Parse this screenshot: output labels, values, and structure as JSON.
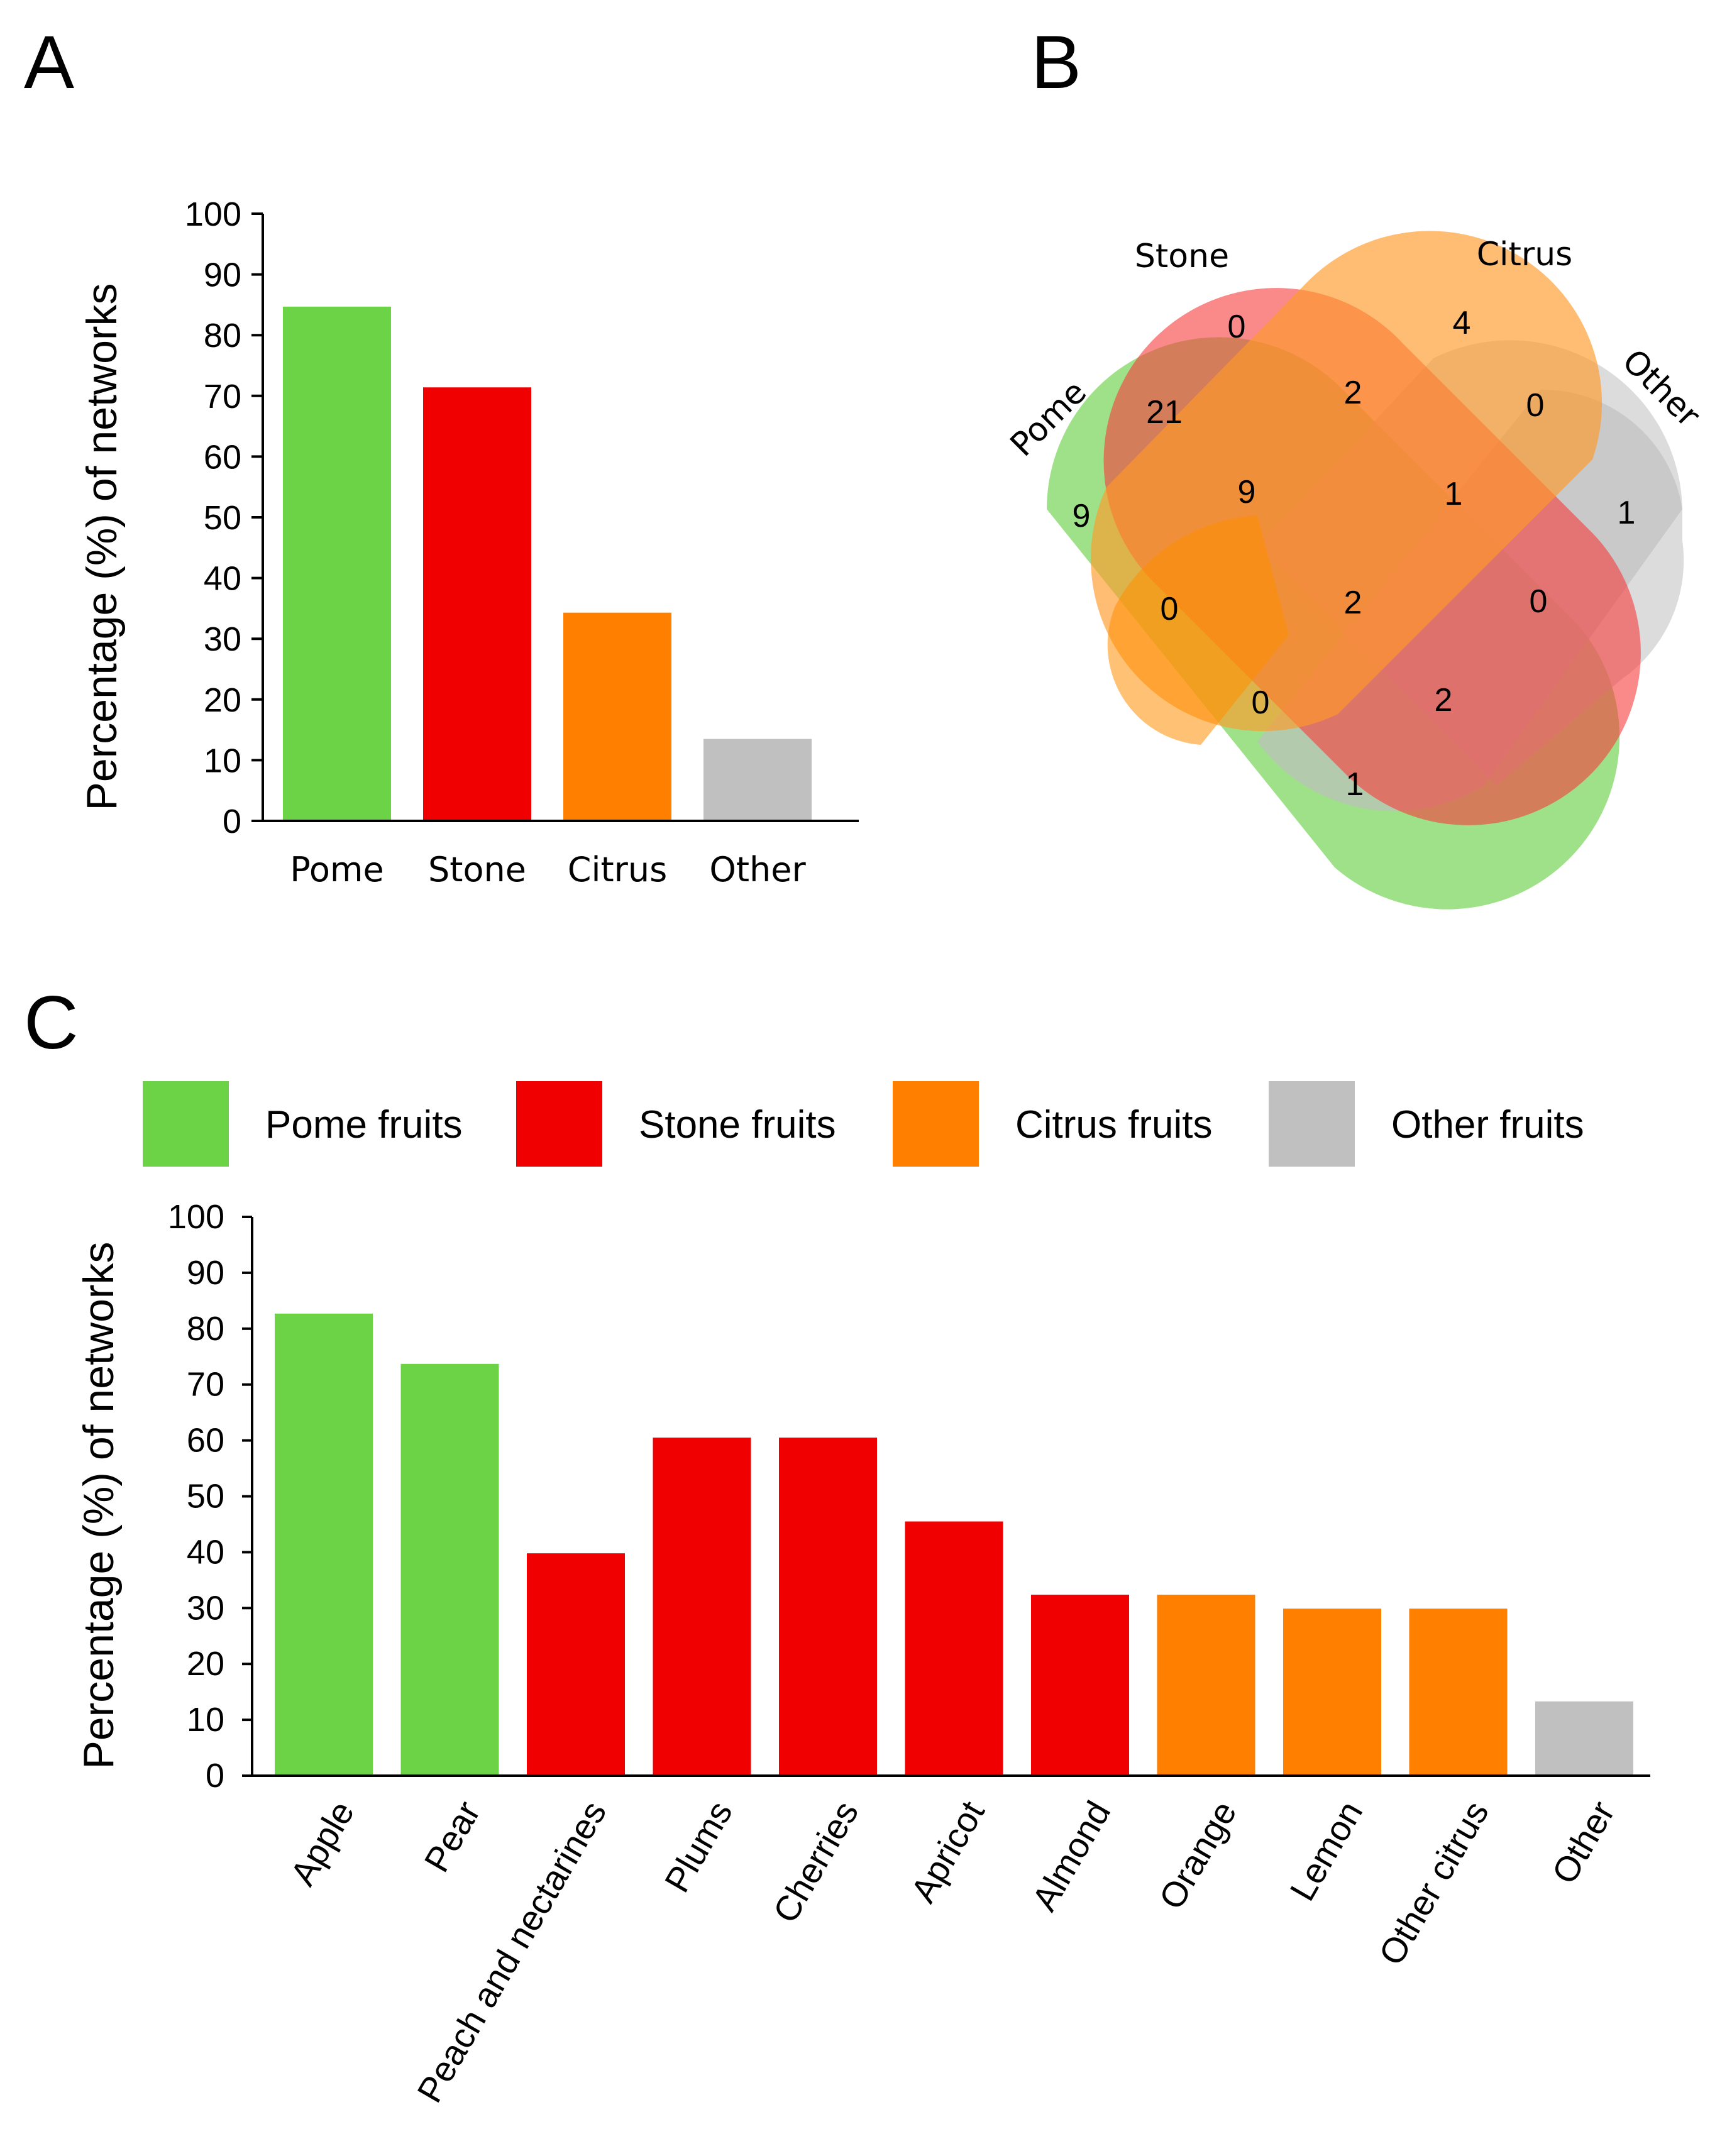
{
  "panels": {
    "a": "A",
    "b": "B",
    "c": "C"
  },
  "colors": {
    "pome": "#6cd346",
    "stone": "#f00000",
    "citrus": "#ff7f00",
    "other": "#c0c0c0"
  },
  "chart_data": [
    {
      "id": "A",
      "type": "bar",
      "title": "",
      "xlabel": "",
      "ylabel": "Percentage (%) of networks",
      "ylim": [
        0,
        100
      ],
      "yticks": [
        "0",
        "10",
        "20",
        "30",
        "40",
        "50",
        "60",
        "70",
        "80",
        "90",
        "100"
      ],
      "categories": [
        "Pome",
        "Stone",
        "Citrus",
        "Other"
      ],
      "values": [
        84.7,
        71.4,
        34.3,
        13.5
      ],
      "groups": [
        "pome",
        "stone",
        "citrus",
        "other"
      ]
    },
    {
      "id": "B",
      "type": "venn",
      "sets": [
        "Pome",
        "Stone",
        "Citrus",
        "Other"
      ],
      "regions": [
        {
          "sets": [
            "Pome"
          ],
          "count": "9"
        },
        {
          "sets": [
            "Stone"
          ],
          "count": "0"
        },
        {
          "sets": [
            "Citrus"
          ],
          "count": "4"
        },
        {
          "sets": [
            "Other"
          ],
          "count": "1"
        },
        {
          "sets": [
            "Pome",
            "Stone"
          ],
          "count": "21"
        },
        {
          "sets": [
            "Stone",
            "Citrus"
          ],
          "count": "2"
        },
        {
          "sets": [
            "Citrus",
            "Other"
          ],
          "count": "0"
        },
        {
          "sets": [
            "Pome",
            "Stone",
            "Citrus"
          ],
          "count": "9"
        },
        {
          "sets": [
            "Stone",
            "Citrus",
            "Other"
          ],
          "count": "1"
        },
        {
          "sets": [
            "Pome",
            "Citrus"
          ],
          "count": "0"
        },
        {
          "sets": [
            "Pome",
            "Stone",
            "Citrus",
            "Other"
          ],
          "count": "2"
        },
        {
          "sets": [
            "Stone",
            "Other"
          ],
          "count": "0"
        },
        {
          "sets": [
            "Pome",
            "Citrus",
            "Other"
          ],
          "count": "0"
        },
        {
          "sets": [
            "Pome",
            "Stone",
            "Other"
          ],
          "count": "2"
        },
        {
          "sets": [
            "Pome",
            "Other"
          ],
          "count": "1"
        }
      ]
    },
    {
      "id": "C",
      "type": "bar",
      "title": "",
      "xlabel": "",
      "ylabel": "Percentage (%) of networks",
      "ylim": [
        0,
        100
      ],
      "yticks": [
        "0",
        "10",
        "20",
        "30",
        "40",
        "50",
        "60",
        "70",
        "80",
        "90",
        "100"
      ],
      "legend": [
        {
          "label": "Pome fruits",
          "group": "pome"
        },
        {
          "label": "Stone fruits",
          "group": "stone"
        },
        {
          "label": "Citrus fruits",
          "group": "citrus"
        },
        {
          "label": "Other fruits",
          "group": "other"
        }
      ],
      "legend_position": "top",
      "categories": [
        "Apple",
        "Pear",
        "Peach and nectarines",
        "Plums",
        "Cherries",
        "Apricot",
        "Almond",
        "Orange",
        "Lemon",
        "Other citrus",
        "Other"
      ],
      "values": [
        82.7,
        73.7,
        39.8,
        60.5,
        60.5,
        45.5,
        32.4,
        32.4,
        29.9,
        29.9,
        13.3
      ],
      "groups": [
        "pome",
        "pome",
        "stone",
        "stone",
        "stone",
        "stone",
        "stone",
        "citrus",
        "citrus",
        "citrus",
        "other"
      ]
    }
  ]
}
